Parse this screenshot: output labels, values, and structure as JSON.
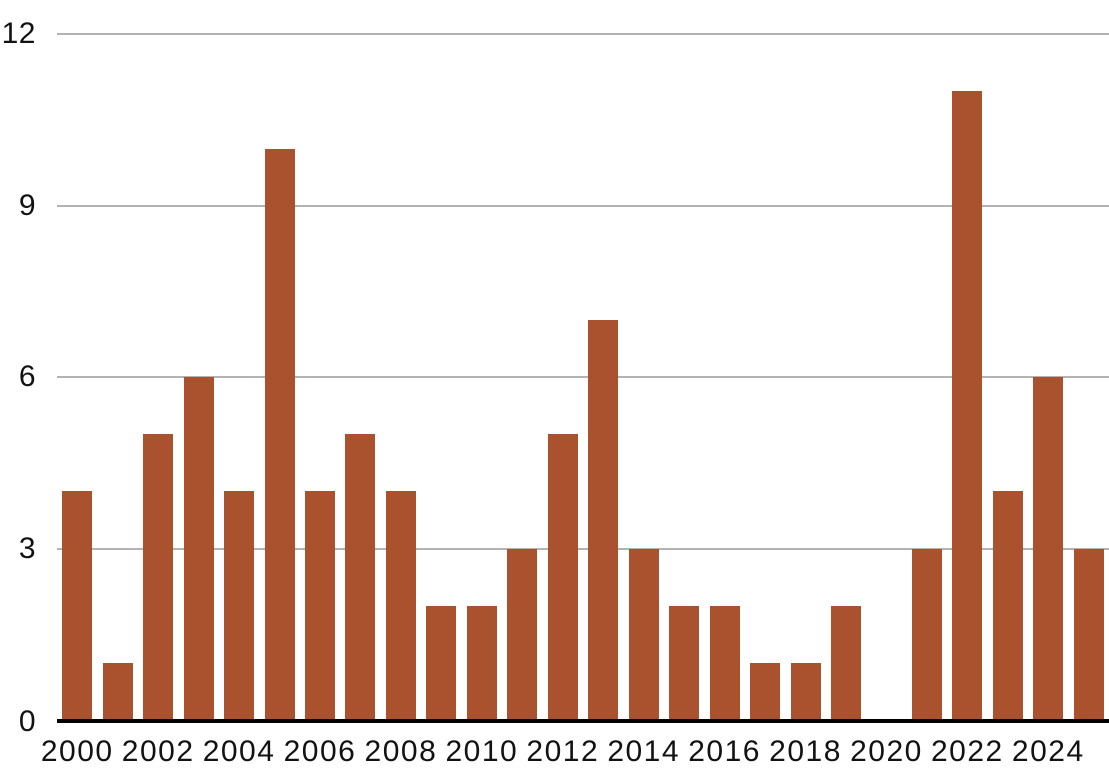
{
  "chart_data": {
    "type": "bar",
    "categories": [
      "2000",
      "2001",
      "2002",
      "2003",
      "2004",
      "2005",
      "2006",
      "2007",
      "2008",
      "2009",
      "2010",
      "2011",
      "2012",
      "2013",
      "2014",
      "2015",
      "2016",
      "2017",
      "2018",
      "2019",
      "2020",
      "2021",
      "2022",
      "2023",
      "2024",
      "2025"
    ],
    "values": [
      4,
      1,
      5,
      6,
      4,
      10,
      4,
      5,
      4,
      2,
      2,
      3,
      5,
      7,
      3,
      2,
      2,
      1,
      1,
      2,
      0,
      3,
      11,
      4,
      6,
      3
    ],
    "title": "",
    "xlabel": "",
    "ylabel": "",
    "ylim": [
      0,
      12
    ],
    "y_ticks": [
      0,
      3,
      6,
      9,
      12
    ],
    "x_tick_labels": [
      "2000",
      "2002",
      "2004",
      "2006",
      "2008",
      "2010",
      "2012",
      "2014",
      "2016",
      "2018",
      "2020",
      "2022",
      "2024"
    ],
    "x_tick_step": 2,
    "grid": "horizontal",
    "legend_position": "none",
    "colors": {
      "bar": "#a9522d",
      "gridline": "#b3b3b3",
      "axis_line": "#000000",
      "tick_text": "#121212",
      "background": "#ffffff"
    }
  }
}
